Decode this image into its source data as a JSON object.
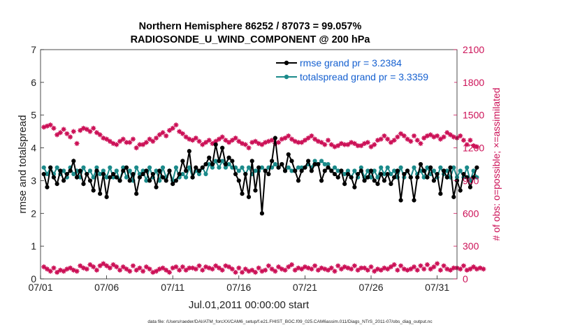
{
  "chart_data": {
    "type": "line",
    "title_line1": "Northern Hemisphere 86252 / 87073 = 99.057%",
    "title_line2": "RADIOSONDE_U_WIND_COMPONENT @ 200 hPa",
    "xlabel": "Jul.01,2011 00:00:00 start",
    "ylabel_left": "rmse and totalspread",
    "ylabel_right": "# of obs: o=possible; ×=assimilated",
    "ylim_left": [
      0,
      7
    ],
    "ylim_right": [
      0,
      2100
    ],
    "xlim": [
      0,
      31.5
    ],
    "x_ticks": [
      0,
      5,
      10,
      15,
      20,
      25,
      30
    ],
    "x_tick_labels": [
      "07/01",
      "07/06",
      "07/11",
      "07/16",
      "07/21",
      "07/26",
      "07/31"
    ],
    "y_left_ticks": [
      0,
      1,
      2,
      3,
      4,
      5,
      6,
      7
    ],
    "y_left_tick_labels": [
      "0",
      "1",
      "2",
      "3",
      "4",
      "5",
      "6",
      "7"
    ],
    "y_right_ticks": [
      0,
      300,
      600,
      900,
      1200,
      1500,
      1800,
      2100
    ],
    "y_right_tick_labels": [
      "0",
      "300",
      "600",
      "900",
      "1200",
      "1500",
      "1800",
      "2100"
    ],
    "colors": {
      "rmse": "#000000",
      "totalspread": "#1b8a8a",
      "obs": "#cc1157",
      "legend_text": "#1560d0"
    },
    "legend": [
      {
        "name": "rmse",
        "label": "rmse grand pr = 3.2384"
      },
      {
        "name": "totalspread",
        "label": "totalspread grand pr = 3.3359"
      }
    ],
    "series": [
      {
        "name": "rmse",
        "axis": "left",
        "values": [
          3.2,
          2.8,
          3.4,
          3.1,
          2.9,
          3.3,
          3.0,
          3.2,
          3.3,
          3.6,
          3.1,
          3.3,
          2.9,
          3.2,
          3.0,
          2.7,
          3.3,
          2.6,
          3.2,
          2.5,
          3.1,
          3.2,
          3.1,
          3.0,
          3.3,
          3.4,
          3.0,
          3.2,
          2.6,
          3.1,
          3.2,
          3.3,
          3.0,
          3.2,
          2.8,
          3.3,
          3.1,
          3.0,
          3.3,
          2.9,
          3.0,
          3.2,
          3.6,
          3.3,
          3.9,
          3.1,
          3.4,
          3.3,
          3.4,
          3.5,
          3.7,
          3.5,
          4.1,
          3.6,
          4.0,
          3.5,
          3.7,
          3.6,
          3.2,
          3.0,
          2.6,
          3.2,
          2.5,
          3.6,
          2.7,
          3.4,
          2.0,
          3.3,
          3.2,
          3.6,
          4.3,
          3.4,
          3.5,
          3.3,
          3.8,
          3.6,
          3.3,
          3.0,
          3.3,
          3.4,
          3.6,
          3.3,
          3.5,
          3.5,
          3.0,
          3.3,
          3.4,
          3.3,
          3.2,
          3.1,
          3.3,
          2.9,
          3.2,
          3.1,
          2.8,
          3.2,
          3.3,
          3.0,
          3.1,
          3.3,
          3.0,
          2.9,
          3.2,
          3.0,
          3.2,
          2.9,
          3.1,
          3.3,
          2.4,
          3.2,
          3.3,
          3.1,
          2.4,
          3.1,
          3.5,
          3.3,
          3.1,
          3.4,
          3.0,
          3.2,
          2.6,
          3.3,
          3.1,
          3.4,
          2.5,
          3.0,
          2.7,
          3.2,
          3.1,
          2.8,
          3.1,
          3.4
        ]
      },
      {
        "name": "totalspread",
        "axis": "left",
        "values": [
          3.4,
          3.2,
          3.4,
          3.2,
          3.4,
          3.2,
          3.3,
          3.1,
          3.4,
          3.2,
          3.3,
          3.1,
          3.4,
          3.2,
          3.3,
          3.1,
          3.4,
          3.2,
          3.3,
          3.1,
          3.4,
          3.1,
          3.3,
          3.0,
          3.4,
          3.1,
          3.3,
          3.0,
          3.4,
          3.2,
          3.3,
          3.0,
          3.4,
          3.1,
          3.3,
          3.0,
          3.4,
          3.1,
          3.3,
          3.0,
          3.4,
          3.1,
          3.2,
          3.1,
          3.4,
          3.1,
          3.3,
          3.2,
          3.4,
          3.2,
          3.5,
          3.4,
          3.6,
          3.4,
          3.6,
          3.4,
          3.5,
          3.4,
          3.4,
          3.3,
          3.4,
          3.2,
          3.4,
          3.2,
          3.3,
          3.3,
          3.4,
          3.3,
          3.4,
          3.4,
          3.5,
          3.4,
          3.5,
          3.3,
          3.4,
          3.3,
          3.3,
          3.4,
          3.4,
          3.4,
          3.5,
          3.4,
          3.6,
          3.5,
          3.6,
          3.5,
          3.5,
          3.3,
          3.4,
          3.3,
          3.3,
          3.2,
          3.3,
          3.1,
          3.3,
          3.1,
          3.4,
          3.1,
          3.3,
          3.1,
          3.3,
          3.1,
          3.4,
          3.2,
          3.4,
          3.2,
          3.3,
          3.1,
          3.4,
          3.1,
          3.3,
          3.1,
          3.4,
          3.2,
          3.3,
          3.1,
          3.4,
          3.2,
          3.3,
          3.1,
          3.4,
          3.2,
          3.3,
          3.1,
          3.4,
          3.1,
          3.3,
          3.1,
          3.4,
          3.0,
          3.3,
          3.1
        ]
      },
      {
        "name": "obs_possible",
        "axis": "right",
        "values": [
          1390,
          1400,
          1410,
          1380,
          1320,
          1340,
          1370,
          1330,
          1300,
          1350,
          1240,
          1360,
          1380,
          1370,
          1350,
          1380,
          1340,
          1320,
          1290,
          1280,
          1260,
          1240,
          1230,
          1260,
          1280,
          1250,
          1250,
          1280,
          1200,
          1230,
          1230,
          1250,
          1280,
          1260,
          1290,
          1320,
          1340,
          1310,
          1360,
          1380,
          1410,
          1350,
          1330,
          1300,
          1280,
          1270,
          1290,
          1260,
          1230,
          1250,
          1270,
          1240,
          1260,
          1280,
          1300,
          1270,
          1250,
          1270,
          1290,
          1260,
          1240,
          1230,
          1200,
          1250,
          1260,
          1240,
          1230,
          1250,
          1260,
          1270,
          1240,
          1250,
          1280,
          1290,
          1310,
          1280,
          1260,
          1250,
          1250,
          1270,
          1290,
          1310,
          1280,
          1260,
          1250,
          1230,
          1270,
          1230,
          1210,
          1220,
          1240,
          1230,
          1230,
          1250,
          1240,
          1220,
          1220,
          1240,
          1250,
          1210,
          1230,
          1270,
          1280,
          1310,
          1280,
          1250,
          1270,
          1300,
          1330,
          1310,
          1280,
          1260,
          1310,
          1270,
          1240,
          1290,
          1310,
          1320,
          1300,
          1310,
          1280,
          1300,
          1340,
          1320,
          1300,
          1290,
          1310,
          1270,
          1230,
          1270,
          1220,
          1210
        ]
      },
      {
        "name": "obs_assimilated",
        "axis": "right",
        "values": [
          110,
          90,
          70,
          100,
          60,
          80,
          70,
          90,
          100,
          80,
          70,
          120,
          100,
          90,
          130,
          110,
          80,
          120,
          140,
          120,
          100,
          130,
          110,
          80,
          110,
          90,
          70,
          120,
          80,
          100,
          70,
          110,
          90,
          60,
          70,
          90,
          100,
          80,
          60,
          100,
          110,
          80,
          110,
          80,
          100,
          100,
          90,
          120,
          80,
          110,
          100,
          90,
          120,
          100,
          80,
          120,
          110,
          90,
          60,
          100,
          60,
          90,
          70,
          80,
          60,
          100,
          70,
          80,
          120,
          90,
          70,
          110,
          90,
          80,
          110,
          130,
          80,
          100,
          90,
          110,
          100,
          90,
          120,
          80,
          100,
          90,
          80,
          100,
          70,
          120,
          90,
          110,
          100,
          90,
          120,
          80,
          100,
          100,
          80,
          110,
          70,
          90,
          80,
          100,
          90,
          110,
          130,
          80,
          120,
          90,
          80,
          90,
          110,
          80,
          120,
          90,
          130,
          90,
          110,
          140,
          80,
          120,
          90,
          80,
          100,
          100,
          90,
          120,
          80,
          90,
          110,
          90,
          100,
          90
        ]
      }
    ]
  },
  "footer": {
    "datafile": "data file: /Users/raeder/DAI/ATM_forcXX/CAM6_setup/f.e21.FHIST_BGC.f09_025.CAM6assim.011/Diags_NTrS_2011-07/obs_diag_output.nc"
  }
}
